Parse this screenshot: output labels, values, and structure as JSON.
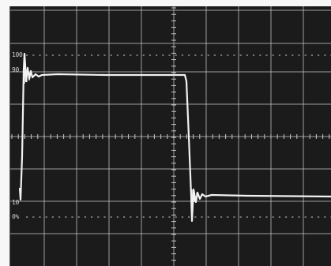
{
  "screen": {
    "colors": {
      "background": "#1b1b1b",
      "graticule": "#c9c9c9",
      "trace": "#f2f2f2"
    },
    "percent_marks": {
      "l100": "100",
      "l90": "90",
      "l10": "10",
      "l0": "0%"
    }
  }
}
